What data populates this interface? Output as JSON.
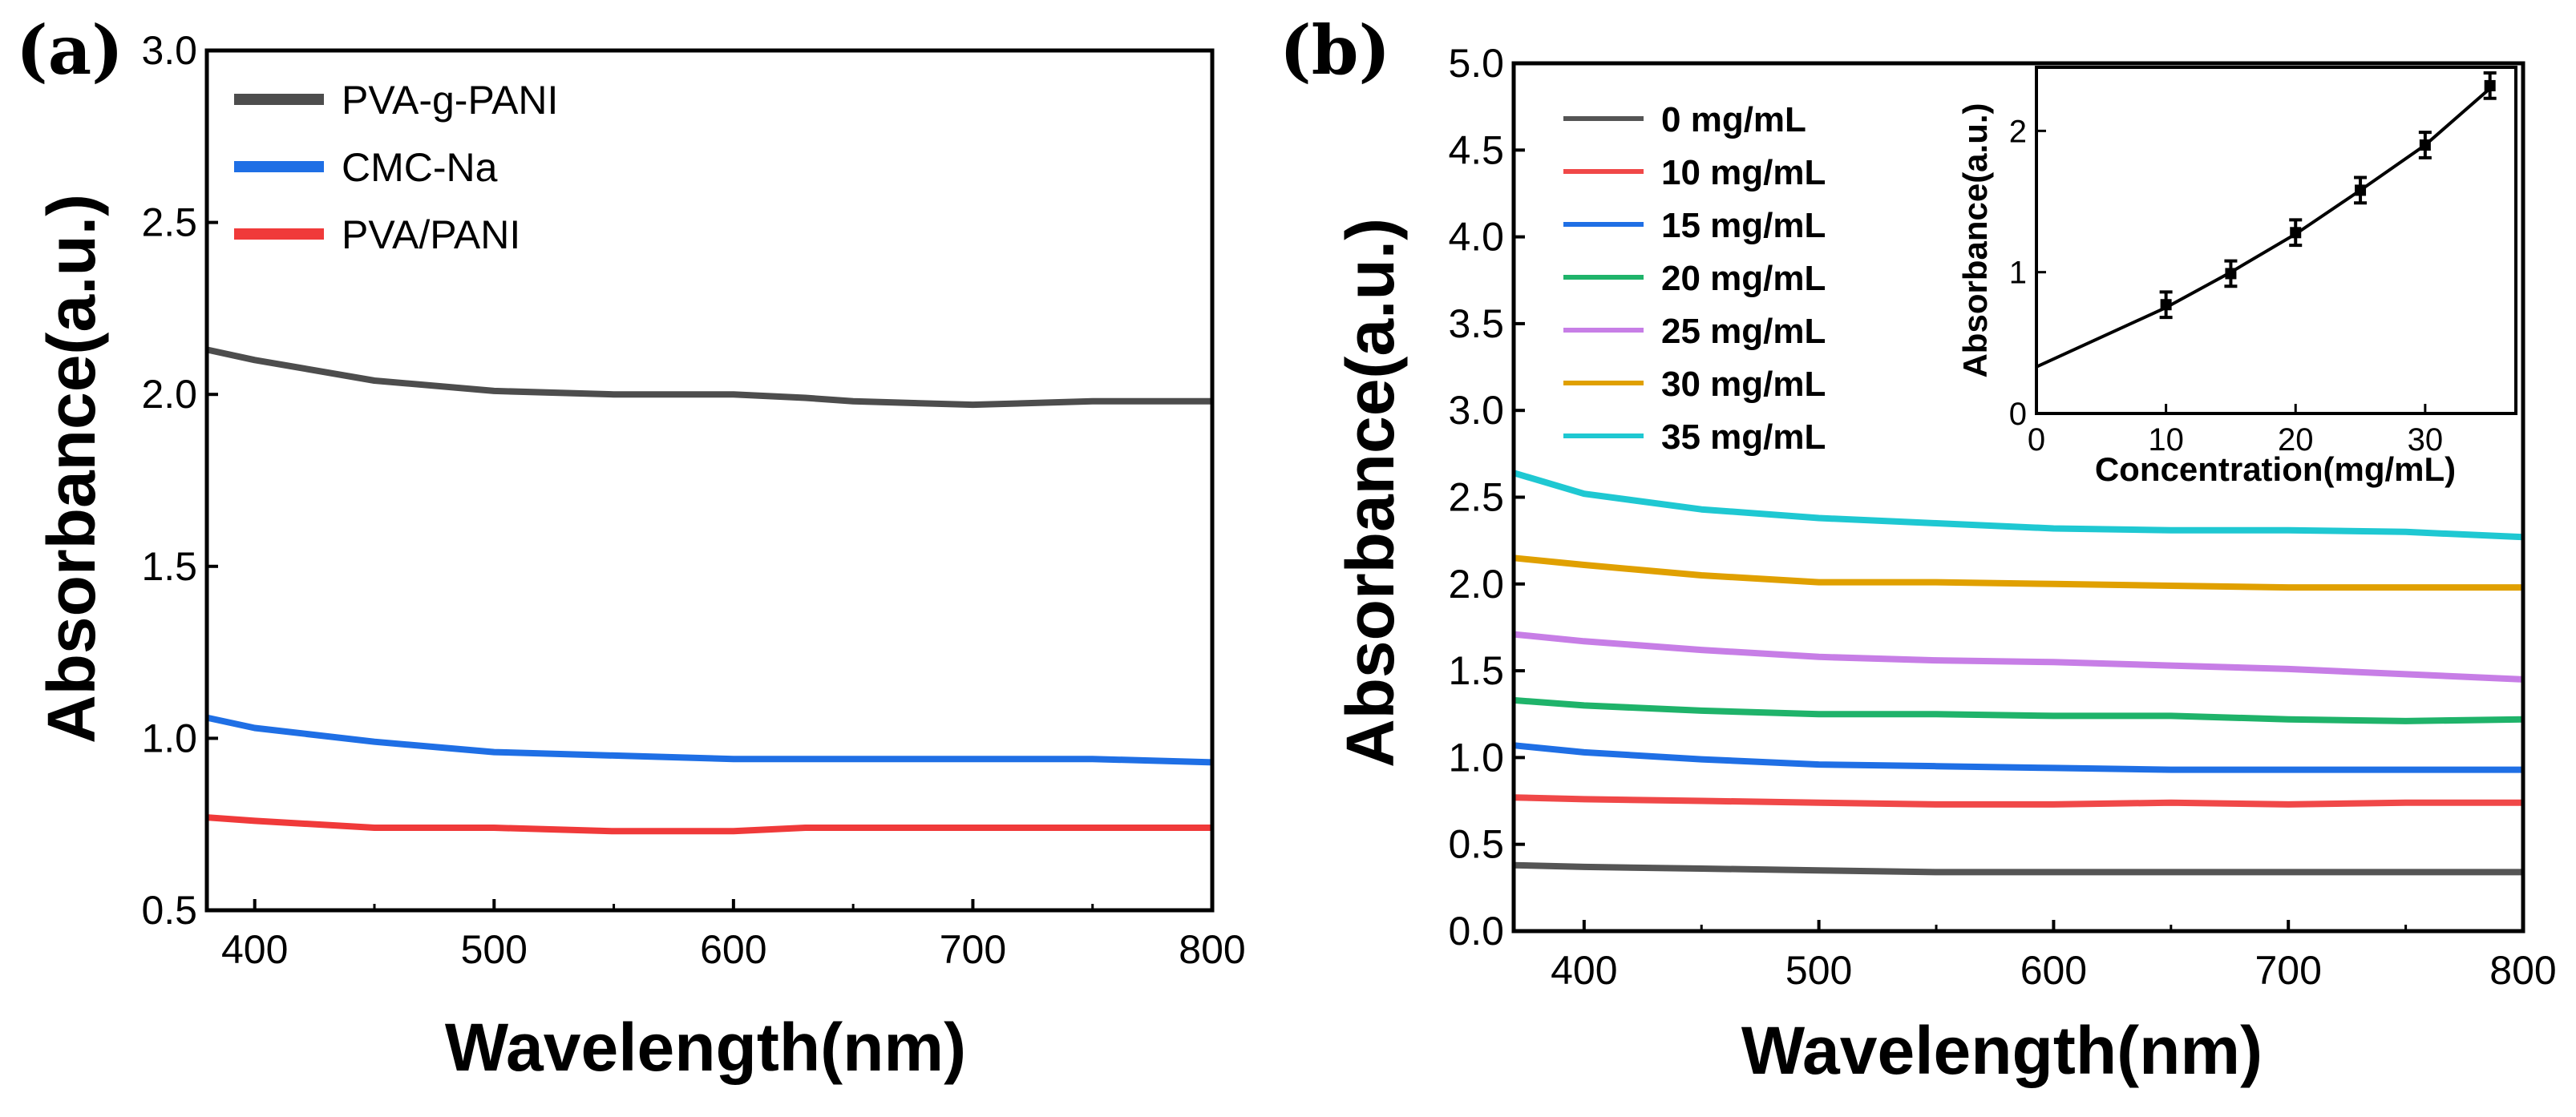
{
  "chart_data": [
    {
      "panel_label": "(a)",
      "type": "line",
      "title": "",
      "xlabel": "Wavelength(nm)",
      "ylabel": "Absorbance(a.u.)",
      "xlim": [
        380,
        800
      ],
      "ylim": [
        0.5,
        3.0
      ],
      "xticks": [
        400,
        500,
        600,
        700,
        800
      ],
      "yticks": [
        0.5,
        1.0,
        1.5,
        2.0,
        2.5,
        3.0
      ],
      "ytick_labels": [
        "0.5",
        "1.0",
        "1.5",
        "2.0",
        "2.5",
        "3.0"
      ],
      "grid": false,
      "legend_position": "top-left",
      "series": [
        {
          "name": "PVA-g-PANI",
          "color": "#4d4d4d",
          "x": [
            380,
            400,
            450,
            500,
            550,
            600,
            630,
            650,
            700,
            750,
            800
          ],
          "y": [
            2.13,
            2.1,
            2.04,
            2.01,
            2.0,
            2.0,
            1.99,
            1.98,
            1.97,
            1.98,
            1.98
          ]
        },
        {
          "name": "CMC-Na",
          "color": "#1f6fe5",
          "x": [
            380,
            400,
            450,
            500,
            550,
            600,
            650,
            700,
            750,
            800
          ],
          "y": [
            1.06,
            1.03,
            0.99,
            0.96,
            0.95,
            0.94,
            0.94,
            0.94,
            0.94,
            0.93
          ]
        },
        {
          "name": "PVA/PANI",
          "color": "#f03a3a",
          "x": [
            380,
            400,
            450,
            500,
            550,
            600,
            630,
            650,
            700,
            750,
            800
          ],
          "y": [
            0.77,
            0.76,
            0.74,
            0.74,
            0.73,
            0.73,
            0.74,
            0.74,
            0.74,
            0.74,
            0.74
          ]
        }
      ]
    },
    {
      "panel_label": "(b)",
      "type": "line",
      "title": "",
      "xlabel": "Wavelength(nm)",
      "ylabel": "Absorbance(a.u.)",
      "xlim": [
        370,
        800
      ],
      "ylim": [
        0.0,
        5.0
      ],
      "xticks": [
        400,
        500,
        600,
        700,
        800
      ],
      "yticks": [
        0.0,
        0.5,
        1.0,
        1.5,
        2.0,
        2.5,
        3.0,
        3.5,
        4.0,
        4.5,
        5.0
      ],
      "ytick_labels": [
        "0.0",
        "0.5",
        "1.0",
        "1.5",
        "2.0",
        "2.5",
        "3.0",
        "3.5",
        "4.0",
        "4.5",
        "5.0"
      ],
      "grid": false,
      "legend_position": "top-left",
      "series": [
        {
          "name": "0 mg/mL",
          "color": "#555555",
          "x": [
            370,
            400,
            450,
            500,
            550,
            600,
            650,
            700,
            750,
            800
          ],
          "y": [
            0.38,
            0.37,
            0.36,
            0.35,
            0.34,
            0.34,
            0.34,
            0.34,
            0.34,
            0.34
          ]
        },
        {
          "name": "10 mg/mL",
          "color": "#f04848",
          "x": [
            370,
            400,
            450,
            500,
            550,
            600,
            650,
            700,
            750,
            800
          ],
          "y": [
            0.77,
            0.76,
            0.75,
            0.74,
            0.73,
            0.73,
            0.74,
            0.73,
            0.74,
            0.74
          ]
        },
        {
          "name": "15 mg/mL",
          "color": "#1f6fe5",
          "x": [
            370,
            400,
            450,
            500,
            550,
            600,
            650,
            700,
            750,
            800
          ],
          "y": [
            1.07,
            1.03,
            0.99,
            0.96,
            0.95,
            0.94,
            0.93,
            0.93,
            0.93,
            0.93
          ]
        },
        {
          "name": "20 mg/mL",
          "color": "#1fb36a",
          "x": [
            370,
            400,
            450,
            500,
            550,
            600,
            650,
            700,
            750,
            800
          ],
          "y": [
            1.33,
            1.3,
            1.27,
            1.25,
            1.25,
            1.24,
            1.24,
            1.22,
            1.21,
            1.22
          ]
        },
        {
          "name": "25 mg/mL",
          "color": "#c77ee6",
          "x": [
            370,
            400,
            450,
            500,
            550,
            600,
            650,
            700,
            750,
            800
          ],
          "y": [
            1.71,
            1.67,
            1.62,
            1.58,
            1.56,
            1.55,
            1.53,
            1.51,
            1.48,
            1.45
          ]
        },
        {
          "name": "30 mg/mL",
          "color": "#e0a000",
          "x": [
            370,
            400,
            450,
            500,
            550,
            600,
            650,
            700,
            750,
            800
          ],
          "y": [
            2.15,
            2.11,
            2.05,
            2.01,
            2.01,
            2.0,
            1.99,
            1.98,
            1.98,
            1.98
          ]
        },
        {
          "name": "35 mg/mL",
          "color": "#1fc8d2",
          "x": [
            370,
            400,
            450,
            500,
            550,
            600,
            650,
            700,
            750,
            800
          ],
          "y": [
            2.64,
            2.52,
            2.43,
            2.38,
            2.35,
            2.32,
            2.31,
            2.31,
            2.3,
            2.27
          ]
        }
      ],
      "inset": {
        "type": "line",
        "xlabel": "Concentration(mg/mL)",
        "ylabel": "Absorbance(a.u.)",
        "xlim": [
          0,
          37
        ],
        "ylim": [
          0,
          2.45
        ],
        "xticks": [
          0,
          10,
          20,
          30
        ],
        "yticks": [
          0,
          1,
          2
        ],
        "fit_line": {
          "x": [
            0,
            10,
            15,
            20,
            25,
            30,
            35
          ],
          "y": [
            0.33,
            0.75,
            1.0,
            1.27,
            1.58,
            1.9,
            2.3
          ]
        },
        "points": {
          "x": [
            10,
            15,
            20,
            25,
            30,
            35
          ],
          "y": [
            0.77,
            0.99,
            1.28,
            1.58,
            1.9,
            2.32
          ],
          "err": [
            0.09,
            0.09,
            0.09,
            0.09,
            0.09,
            0.09
          ]
        },
        "color": "#000000"
      }
    }
  ]
}
